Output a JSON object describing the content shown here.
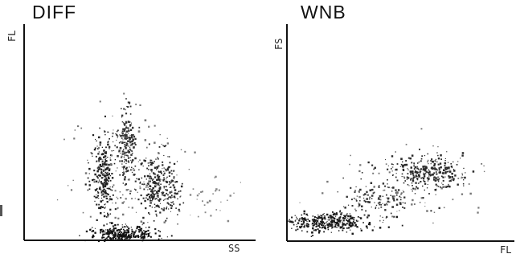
{
  "chart_data": [
    {
      "type": "scatter",
      "title": "DIFF",
      "xlabel": "SS",
      "ylabel": "FL",
      "xlim": [
        0,
        100
      ],
      "ylim": [
        0,
        100
      ],
      "grid": false,
      "clusters": [
        {
          "cx": 34,
          "cy": 30,
          "sx": 2.5,
          "sy": 9,
          "n": 260,
          "color": "#222222"
        },
        {
          "cx": 44,
          "cy": 44,
          "sx": 2.2,
          "sy": 9,
          "n": 200,
          "color": "#333333"
        },
        {
          "cx": 58,
          "cy": 25,
          "sx": 4.5,
          "sy": 7,
          "n": 320,
          "color": "#2a2a2a"
        },
        {
          "cx": 43,
          "cy": 3,
          "sx": 7,
          "sy": 2,
          "n": 280,
          "color": "#111111"
        },
        {
          "cx": 45,
          "cy": 30,
          "sx": 12,
          "sy": 18,
          "n": 110,
          "color": "#777777"
        },
        {
          "cx": 82,
          "cy": 20,
          "sx": 8,
          "sy": 6,
          "n": 30,
          "color": "#888888"
        }
      ]
    },
    {
      "type": "scatter",
      "title": "WNB",
      "xlabel": "FL",
      "ylabel": "FS",
      "xlim": [
        0,
        100
      ],
      "ylim": [
        0,
        100
      ],
      "grid": false,
      "clusters": [
        {
          "cx": 18,
          "cy": 9,
          "sx": 9,
          "sy": 2.2,
          "n": 340,
          "color": "#1a1a1a"
        },
        {
          "cx": 40,
          "cy": 20,
          "sx": 8,
          "sy": 4,
          "n": 140,
          "color": "#333333"
        },
        {
          "cx": 62,
          "cy": 32,
          "sx": 9,
          "sy": 4,
          "n": 300,
          "color": "#2a2a2a"
        },
        {
          "cx": 50,
          "cy": 26,
          "sx": 20,
          "sy": 10,
          "n": 80,
          "color": "#777777"
        }
      ]
    }
  ]
}
